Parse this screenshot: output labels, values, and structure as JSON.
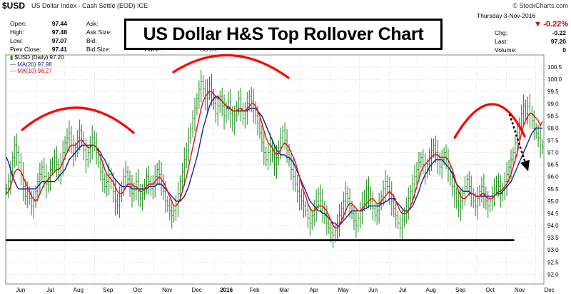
{
  "header": {
    "symbol": "$USD",
    "description": "US Dollar Index - Cash Settle (EOD) ICE",
    "brand": "© StockCharts.com"
  },
  "quote": {
    "open_label": "Open:",
    "open": "97.44",
    "high_label": "High:",
    "high": "97.48",
    "low_label": "Low:",
    "low": "97.07",
    "prev_label": "Prev Close:",
    "prev": "97.41",
    "ask_label": "Ask:",
    "ask_size_label": "Ask Size:",
    "bid_label": "Bid:",
    "bid_size_label": "Bid Size:",
    "vwap_label": "VWAP:",
    "sctr_label": "SCTR:"
  },
  "right_panel": {
    "date": "Thursday  3-Nov-2016",
    "change_pct": "-0.22%",
    "chg_label": "Chg:",
    "chg": "-0.22",
    "last_label": "Last:",
    "last": "97.20",
    "volume_label": "Volume:",
    "volume": "0"
  },
  "title": "US Dollar H&S Top Rollover Chart",
  "legend": {
    "price": "$USD (Daily) 97.20",
    "ma20": "MA(20) 97.98",
    "ma10": "MA(10) 98.27"
  },
  "colors": {
    "price": "#1a8a1a",
    "ma20": "#1a1a9a",
    "ma10": "#e01010",
    "annotation": "#ff0000",
    "neckline": "#000000",
    "grid": "#c8c8c8"
  },
  "chart_data": {
    "type": "line",
    "ylim": [
      91.6,
      101.0
    ],
    "y_ticks": [
      "92.0",
      "92.5",
      "93.0",
      "93.5",
      "94.0",
      "94.5",
      "95.0",
      "95.5",
      "96.0",
      "96.5",
      "97.0",
      "97.5",
      "98.0",
      "98.5",
      "99.0",
      "99.5",
      "100.0",
      "100.5"
    ],
    "x_ticks": [
      "Jun",
      "Jul",
      "Aug",
      "Sep",
      "Oct",
      "Nov",
      "Dec",
      "2016",
      "Feb",
      "Mar",
      "Apr",
      "May",
      "Jun",
      "Jul",
      "Aug",
      "Sep",
      "Oct",
      "Nov",
      "Dec"
    ],
    "x_tick_pos": [
      1,
      23,
      44,
      66,
      88,
      110,
      132,
      154,
      175,
      197,
      219,
      241,
      263,
      285,
      306,
      328,
      350,
      372,
      394
    ],
    "x_max": 400,
    "close": [
      95.5,
      95.8,
      96.2,
      96.8,
      97.3,
      97.0,
      96.6,
      96.1,
      95.6,
      95.2,
      95.4,
      95.1,
      94.8,
      95.0,
      95.4,
      95.8,
      96.1,
      96.4,
      96.0,
      95.7,
      95.9,
      96.3,
      96.6,
      96.8,
      96.5,
      96.1,
      96.6,
      97.0,
      97.4,
      97.6,
      97.8,
      97.3,
      96.9,
      97.2,
      97.6,
      97.9,
      97.5,
      97.1,
      96.7,
      97.0,
      97.3,
      97.6,
      97.4,
      97.0,
      96.6,
      96.2,
      95.9,
      95.6,
      95.8,
      96.1,
      95.8,
      95.4,
      95.0,
      94.8,
      95.2,
      95.6,
      96.0,
      96.2,
      95.9,
      95.6,
      95.3,
      95.5,
      95.8,
      95.4,
      95.1,
      95.3,
      95.7,
      96.0,
      95.8,
      95.5,
      95.7,
      96.0,
      96.3,
      96.1,
      95.8,
      95.4,
      95.0,
      94.8,
      94.6,
      94.4,
      94.6,
      94.9,
      95.3,
      95.8,
      96.2,
      96.7,
      97.1,
      97.6,
      98.0,
      98.4,
      98.8,
      99.2,
      99.6,
      99.9,
      99.6,
      99.2,
      99.5,
      99.8,
      99.4,
      99.0,
      98.6,
      98.9,
      99.3,
      98.9,
      98.5,
      98.8,
      99.1,
      98.6,
      98.2,
      98.5,
      98.9,
      99.2,
      98.8,
      98.4,
      98.7,
      99.0,
      99.3,
      99.1,
      98.8,
      98.5,
      98.2,
      97.8,
      97.4,
      97.0,
      96.7,
      97.0,
      97.3,
      96.9,
      96.5,
      96.8,
      97.2,
      97.6,
      97.9,
      97.5,
      97.1,
      96.7,
      96.3,
      96.0,
      95.7,
      95.4,
      95.2,
      95.0,
      94.8,
      94.6,
      94.3,
      94.1,
      94.4,
      94.7,
      95.0,
      95.3,
      95.0,
      94.7,
      94.4,
      94.1,
      93.9,
      93.7,
      93.6,
      93.8,
      94.1,
      94.4,
      94.7,
      95.0,
      95.3,
      95.1,
      94.8,
      94.5,
      94.2,
      94.0,
      94.3,
      94.6,
      94.9,
      95.2,
      95.5,
      95.3,
      95.0,
      94.7,
      94.4,
      94.6,
      94.9,
      95.2,
      95.5,
      95.8,
      95.6,
      95.3,
      95.0,
      94.7,
      94.4,
      94.1,
      93.9,
      94.2,
      94.5,
      94.8,
      95.1,
      95.4,
      95.7,
      96.0,
      96.3,
      96.6,
      96.8,
      96.5,
      96.2,
      96.5,
      96.8,
      97.1,
      97.3,
      97.0,
      96.7,
      96.4,
      96.7,
      97.0,
      96.7,
      96.3,
      95.9,
      95.6,
      95.3,
      95.0,
      94.8,
      95.0,
      95.3,
      95.6,
      95.9,
      95.6,
      95.3,
      95.0,
      94.8,
      95.1,
      95.4,
      95.6,
      95.3,
      95.0,
      94.8,
      95.0,
      95.3,
      95.5,
      95.8,
      95.6,
      95.3,
      95.5,
      95.8,
      96.1,
      96.4,
      96.7,
      97.0,
      97.4,
      97.8,
      98.2,
      98.6,
      98.9,
      98.6,
      98.9,
      98.6,
      98.3,
      98.0,
      97.8,
      97.6,
      97.3,
      97.2
    ],
    "ma10": [
      95.3,
      95.4,
      95.6,
      95.9,
      96.2,
      96.3,
      96.3,
      96.2,
      96.0,
      95.8,
      95.6,
      95.4,
      95.2,
      95.1,
      95.0,
      95.1,
      95.3,
      95.5,
      95.7,
      95.8,
      95.9,
      96.0,
      96.1,
      96.2,
      96.3,
      96.3,
      96.4,
      96.6,
      96.8,
      97.0,
      97.2,
      97.3,
      97.3,
      97.3,
      97.4,
      97.5,
      97.5,
      97.4,
      97.3,
      97.2,
      97.2,
      97.3,
      97.3,
      97.2,
      97.0,
      96.8,
      96.6,
      96.3,
      96.1,
      96.0,
      95.9,
      95.8,
      95.6,
      95.4,
      95.3,
      95.3,
      95.4,
      95.6,
      95.7,
      95.7,
      95.7,
      95.6,
      95.6,
      95.5,
      95.4,
      95.4,
      95.5,
      95.6,
      95.7,
      95.7,
      95.7,
      95.8,
      95.9,
      96.0,
      95.9,
      95.8,
      95.6,
      95.4,
      95.2,
      95.0,
      94.8,
      94.8,
      94.9,
      95.1,
      95.4,
      95.7,
      96.0,
      96.4,
      96.8,
      97.2,
      97.6,
      98.0,
      98.4,
      98.8,
      99.1,
      99.3,
      99.4,
      99.5,
      99.5,
      99.4,
      99.3,
      99.2,
      99.2,
      99.1,
      99.0,
      98.9,
      98.9,
      98.8,
      98.7,
      98.7,
      98.7,
      98.8,
      98.8,
      98.7,
      98.7,
      98.8,
      98.9,
      99.0,
      99.0,
      98.9,
      98.7,
      98.5,
      98.2,
      97.9,
      97.6,
      97.4,
      97.3,
      97.2,
      97.0,
      96.9,
      97.0,
      97.1,
      97.3,
      97.4,
      97.3,
      97.2,
      97.0,
      96.8,
      96.6,
      96.3,
      96.0,
      95.7,
      95.4,
      95.2,
      94.9,
      94.7,
      94.6,
      94.6,
      94.7,
      94.8,
      94.8,
      94.8,
      94.7,
      94.6,
      94.4,
      94.2,
      94.0,
      93.9,
      93.9,
      94.0,
      94.2,
      94.4,
      94.6,
      94.8,
      94.9,
      94.9,
      94.8,
      94.7,
      94.6,
      94.6,
      94.7,
      94.8,
      94.9,
      95.0,
      95.1,
      95.1,
      95.0,
      94.9,
      94.9,
      95.0,
      95.1,
      95.2,
      95.3,
      95.4,
      95.3,
      95.2,
      95.0,
      94.8,
      94.6,
      94.5,
      94.5,
      94.5,
      94.6,
      94.8,
      95.0,
      95.3,
      95.6,
      95.9,
      96.2,
      96.4,
      96.5,
      96.6,
      96.7,
      96.8,
      96.9,
      96.9,
      96.9,
      96.8,
      96.8,
      96.8,
      96.8,
      96.7,
      96.5,
      96.3,
      96.0,
      95.7,
      95.4,
      95.2,
      95.1,
      95.1,
      95.2,
      95.3,
      95.3,
      95.3,
      95.2,
      95.2,
      95.2,
      95.3,
      95.3,
      95.2,
      95.1,
      95.1,
      95.1,
      95.2,
      95.3,
      95.4,
      95.4,
      95.5,
      95.6,
      95.7,
      95.9,
      96.1,
      96.4,
      96.7,
      97.0,
      97.4,
      97.8,
      98.1,
      98.3,
      98.5,
      98.6,
      98.6,
      98.5,
      98.4,
      98.3,
      98.1,
      98.27
    ],
    "ma20": [
      96.8,
      96.6,
      96.3,
      96.0,
      95.8,
      95.6,
      95.5,
      95.5,
      95.5,
      95.5,
      95.5,
      95.5,
      95.5,
      95.5,
      95.5,
      95.6,
      95.7,
      95.8,
      95.8,
      95.8,
      95.8,
      95.8,
      95.8,
      95.8,
      95.9,
      96.0,
      96.1,
      96.2,
      96.3,
      96.5,
      96.7,
      96.8,
      96.9,
      97.0,
      97.1,
      97.2,
      97.3,
      97.3,
      97.3,
      97.3,
      97.3,
      97.3,
      97.3,
      97.2,
      97.1,
      97.0,
      96.8,
      96.7,
      96.5,
      96.3,
      96.2,
      96.0,
      95.9,
      95.8,
      95.7,
      95.6,
      95.6,
      95.6,
      95.6,
      95.6,
      95.5,
      95.5,
      95.5,
      95.5,
      95.5,
      95.5,
      95.5,
      95.5,
      95.6,
      95.6,
      95.6,
      95.6,
      95.7,
      95.7,
      95.7,
      95.6,
      95.5,
      95.4,
      95.3,
      95.2,
      95.1,
      95.0,
      95.0,
      95.0,
      95.1,
      95.2,
      95.4,
      95.6,
      95.9,
      96.2,
      96.5,
      96.8,
      97.2,
      97.6,
      98.0,
      98.3,
      98.6,
      98.9,
      99.1,
      99.2,
      99.3,
      99.3,
      99.2,
      99.1,
      99.0,
      98.9,
      98.8,
      98.8,
      98.7,
      98.7,
      98.7,
      98.7,
      98.7,
      98.7,
      98.7,
      98.7,
      98.8,
      98.8,
      98.8,
      98.8,
      98.7,
      98.6,
      98.5,
      98.3,
      98.1,
      97.9,
      97.7,
      97.5,
      97.3,
      97.1,
      97.0,
      96.9,
      96.9,
      96.9,
      96.8,
      96.8,
      96.7,
      96.6,
      96.4,
      96.2,
      96.0,
      95.8,
      95.6,
      95.4,
      95.2,
      95.0,
      94.9,
      94.8,
      94.7,
      94.6,
      94.6,
      94.5,
      94.5,
      94.4,
      94.3,
      94.2,
      94.1,
      94.1,
      94.0,
      94.0,
      94.1,
      94.2,
      94.3,
      94.4,
      94.5,
      94.6,
      94.6,
      94.6,
      94.6,
      94.6,
      94.6,
      94.7,
      94.7,
      94.8,
      94.8,
      94.8,
      94.8,
      94.8,
      94.8,
      94.9,
      94.9,
      95.0,
      95.0,
      95.1,
      95.1,
      95.1,
      95.0,
      94.9,
      94.8,
      94.7,
      94.6,
      94.6,
      94.6,
      94.7,
      94.8,
      95.0,
      95.2,
      95.4,
      95.7,
      95.9,
      96.1,
      96.2,
      96.4,
      96.5,
      96.6,
      96.7,
      96.7,
      96.7,
      96.7,
      96.6,
      96.5,
      96.4,
      96.3,
      96.1,
      95.9,
      95.7,
      95.6,
      95.5,
      95.4,
      95.4,
      95.4,
      95.4,
      95.3,
      95.3,
      95.2,
      95.2,
      95.2,
      95.2,
      95.2,
      95.2,
      95.2,
      95.2,
      95.2,
      95.2,
      95.3,
      95.3,
      95.3,
      95.4,
      95.5,
      95.6,
      95.7,
      95.8,
      96.0,
      96.2,
      96.4,
      96.6,
      96.8,
      97.0,
      97.2,
      97.4,
      97.6,
      97.8,
      97.9,
      98.0,
      98.0,
      98.0,
      97.98
    ],
    "neckline": {
      "x0": 0,
      "x1": 378,
      "y0": 93.4,
      "y1": 93.4
    }
  }
}
